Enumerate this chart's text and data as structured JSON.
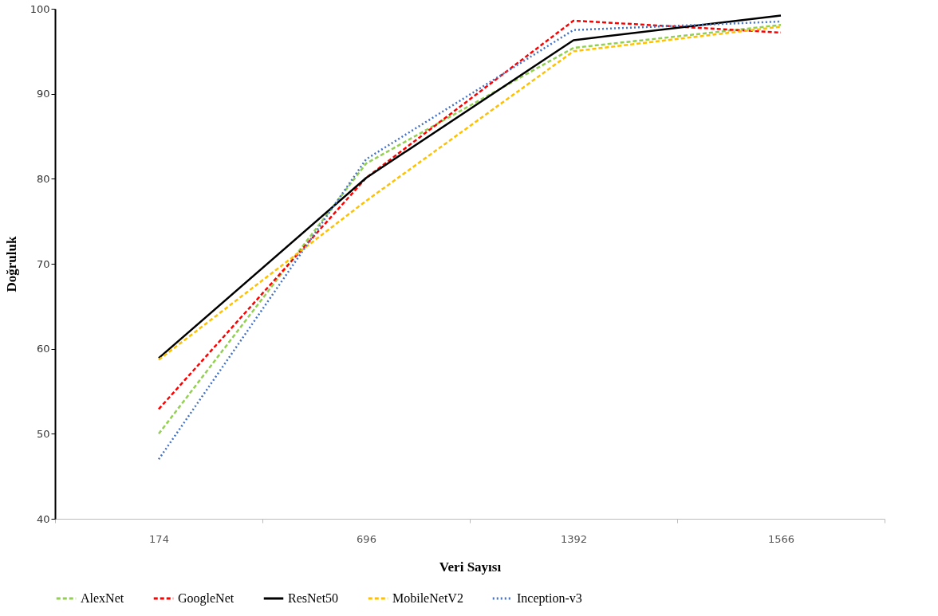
{
  "chart_data": {
    "type": "line",
    "xlabel": "Veri Sayısı",
    "ylabel": "Doğruluk",
    "categories": [
      "174",
      "696",
      "1392",
      "1566"
    ],
    "ylim": [
      40,
      100
    ],
    "yticks": [
      40,
      50,
      60,
      70,
      80,
      90,
      100
    ],
    "grid": false,
    "legend": "bottom",
    "marker": "none",
    "series": [
      {
        "name": "AlexNet",
        "color": "#92d050",
        "line_style": "dashed",
        "values": [
          50.0,
          81.8,
          95.4,
          98.1
        ]
      },
      {
        "name": "GoogleNet",
        "color": "#ff0000",
        "line_style": "dashed",
        "values": [
          52.9,
          80.1,
          98.6,
          97.2
        ]
      },
      {
        "name": "ResNet50",
        "color": "#000000",
        "line_style": "solid",
        "values": [
          58.9,
          80.1,
          96.3,
          99.2
        ]
      },
      {
        "name": "MobileNetV2",
        "color": "#ffc000",
        "line_style": "dashed",
        "values": [
          58.7,
          77.4,
          95.0,
          97.9
        ]
      },
      {
        "name": "Inception-v3",
        "color": "#4472c4",
        "line_style": "dotted",
        "values": [
          47.0,
          82.3,
          97.5,
          98.5
        ]
      }
    ]
  }
}
